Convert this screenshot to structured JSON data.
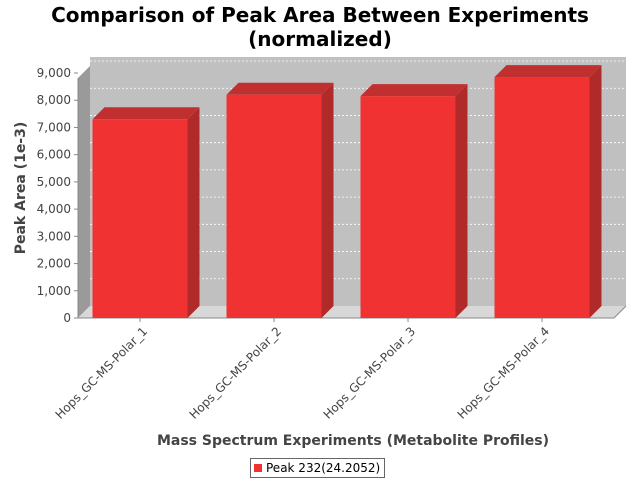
{
  "chart_data": {
    "type": "bar",
    "title_line1": "Comparison of Peak Area Between Experiments",
    "title_line2": "(normalized)",
    "xlabel": "Mass Spectrum Experiments (Metabolite Profiles)",
    "ylabel": "Peak Area (1e-3)",
    "categories": [
      "Hops_GC-MS-Polar_1",
      "Hops_GC-MS-Polar_2",
      "Hops_GC-MS-Polar_3",
      "Hops_GC-MS-Polar_4"
    ],
    "series": [
      {
        "name": "Peak 232(24.2052)",
        "values": [
          7300,
          8200,
          8150,
          8850
        ]
      }
    ],
    "ylim": [
      0,
      9000
    ],
    "yticks": [
      0,
      1000,
      2000,
      3000,
      4000,
      5000,
      6000,
      7000,
      8000,
      9000
    ],
    "ytick_labels": [
      "0",
      "1,000",
      "2,000",
      "3,000",
      "4,000",
      "5,000",
      "6,000",
      "7,000",
      "8,000",
      "9,000"
    ],
    "grid": true,
    "legend_position": "bottom",
    "colors": {
      "bar": "#f03232",
      "bar_top": "#c03030",
      "bar_side": "#b02a2a",
      "plot_background": "#c0c0c0",
      "floor": "#d8d8d8"
    }
  }
}
